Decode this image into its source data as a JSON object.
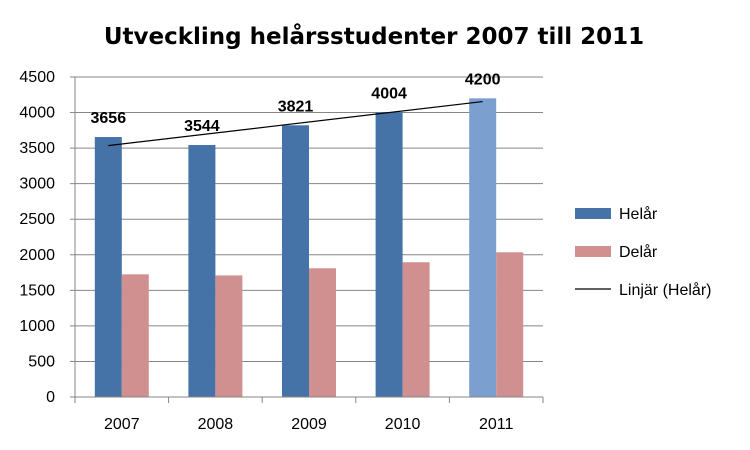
{
  "chart_data": {
    "type": "bar",
    "title": "Utveckling helårsstudenter 2007 till 2011",
    "categories": [
      "2007",
      "2008",
      "2009",
      "2010",
      "2011"
    ],
    "series": [
      {
        "name": "Helår",
        "values": [
          3656,
          3544,
          3821,
          4004,
          4200
        ],
        "color": "#4572A7",
        "point_colors": [
          "#4572A7",
          "#4572A7",
          "#4572A7",
          "#4572A7",
          "#7B9FCF"
        ],
        "data_labels": [
          "3656",
          "3544",
          "3821",
          "4004",
          "4200"
        ]
      },
      {
        "name": "Delår",
        "values": [
          1725,
          1710,
          1810,
          1895,
          2035
        ],
        "color": "#D09090"
      }
    ],
    "trendline": {
      "name": "Linjär (Helår)",
      "series": "Helår",
      "type": "linear",
      "color": "#000000"
    },
    "ylim": [
      0,
      4500
    ],
    "yticks": [
      "0",
      "500",
      "1000",
      "1500",
      "2000",
      "2500",
      "3000",
      "3500",
      "4000",
      "4500"
    ],
    "xlabel": "",
    "ylabel": "",
    "grid": true,
    "legend_position": "right"
  }
}
